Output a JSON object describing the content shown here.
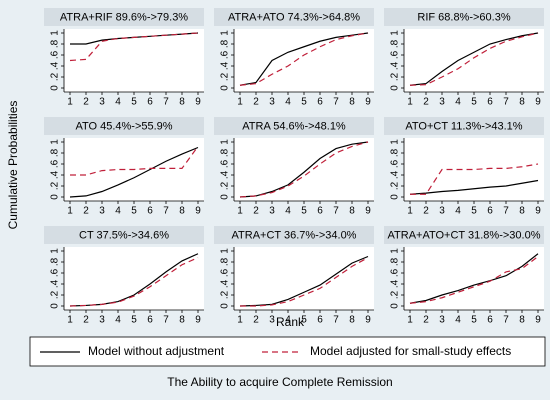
{
  "ylabel": "Cumulative Probabilities",
  "xlabel": "Rank",
  "caption": "The Ability to acquire Complete Remission",
  "chart_data": [
    {
      "type": "line",
      "title": "ATRA+RIF 89.6%->79.3%",
      "x": [
        1,
        2,
        3,
        4,
        5,
        6,
        7,
        8,
        9
      ],
      "xlim": [
        1,
        9
      ],
      "xticks": [
        1,
        2,
        3,
        4,
        5,
        6,
        7,
        8,
        9
      ],
      "ylim": [
        0,
        1
      ],
      "yticks": [
        0,
        {
          "value": 0.2,
          "label": ".2"
        },
        {
          "value": 0.4,
          "label": ".4"
        },
        {
          "value": 0.6,
          "label": ".6"
        },
        {
          "value": 0.8,
          "label": ".8"
        },
        1
      ],
      "series": [
        {
          "name": "Model without adjustment",
          "color": "#000000",
          "values": [
            0.8,
            0.8,
            0.87,
            0.9,
            0.92,
            0.94,
            0.96,
            0.98,
            1
          ]
        },
        {
          "name": "Model adjusted for small-study effects",
          "color": "#c0203a",
          "values": [
            0.5,
            0.52,
            0.85,
            0.9,
            0.92,
            0.94,
            0.96,
            0.98,
            1
          ]
        }
      ]
    },
    {
      "type": "line",
      "title": "ATRA+ATO 74.3%->64.8%",
      "x": [
        1,
        2,
        3,
        4,
        5,
        6,
        7,
        8,
        9
      ],
      "xlim": [
        1,
        9
      ],
      "xticks": [
        1,
        2,
        3,
        4,
        5,
        6,
        7,
        8,
        9
      ],
      "ylim": [
        0,
        1
      ],
      "yticks": [
        0,
        {
          "value": 0.2,
          "label": ".2"
        },
        {
          "value": 0.4,
          "label": ".4"
        },
        {
          "value": 0.6,
          "label": ".6"
        },
        {
          "value": 0.8,
          "label": ".8"
        },
        1
      ],
      "series": [
        {
          "name": "Model without adjustment",
          "color": "#000000",
          "values": [
            0.05,
            0.1,
            0.5,
            0.65,
            0.75,
            0.85,
            0.92,
            0.96,
            1
          ]
        },
        {
          "name": "Model adjusted for small-study effects",
          "color": "#c0203a",
          "values": [
            0.05,
            0.08,
            0.25,
            0.4,
            0.6,
            0.75,
            0.88,
            0.95,
            1
          ]
        }
      ]
    },
    {
      "type": "line",
      "title": "RIF 68.8%->60.3%",
      "x": [
        1,
        2,
        3,
        4,
        5,
        6,
        7,
        8,
        9
      ],
      "xlim": [
        1,
        9
      ],
      "xticks": [
        1,
        2,
        3,
        4,
        5,
        6,
        7,
        8,
        9
      ],
      "ylim": [
        0,
        1
      ],
      "yticks": [
        0,
        {
          "value": 0.2,
          "label": ".2"
        },
        {
          "value": 0.4,
          "label": ".4"
        },
        {
          "value": 0.6,
          "label": ".6"
        },
        {
          "value": 0.8,
          "label": ".8"
        },
        1
      ],
      "series": [
        {
          "name": "Model without adjustment",
          "color": "#000000",
          "values": [
            0.05,
            0.08,
            0.3,
            0.5,
            0.65,
            0.8,
            0.88,
            0.95,
            1
          ]
        },
        {
          "name": "Model adjusted for small-study effects",
          "color": "#c0203a",
          "values": [
            0.05,
            0.06,
            0.2,
            0.35,
            0.55,
            0.72,
            0.85,
            0.93,
            1
          ]
        }
      ]
    },
    {
      "type": "line",
      "title": "ATO 45.4%->55.9%",
      "x": [
        1,
        2,
        3,
        4,
        5,
        6,
        7,
        8,
        9
      ],
      "xlim": [
        1,
        9
      ],
      "xticks": [
        1,
        2,
        3,
        4,
        5,
        6,
        7,
        8,
        9
      ],
      "ylim": [
        0,
        1
      ],
      "yticks": [
        0,
        {
          "value": 0.2,
          "label": ".2"
        },
        {
          "value": 0.4,
          "label": ".4"
        },
        {
          "value": 0.6,
          "label": ".6"
        },
        {
          "value": 0.8,
          "label": ".8"
        },
        1
      ],
      "series": [
        {
          "name": "Model without adjustment",
          "color": "#000000",
          "values": [
            0,
            0.02,
            0.1,
            0.22,
            0.35,
            0.5,
            0.65,
            0.78,
            0.9
          ]
        },
        {
          "name": "Model adjusted for small-study effects",
          "color": "#c0203a",
          "values": [
            0.4,
            0.4,
            0.48,
            0.5,
            0.5,
            0.52,
            0.52,
            0.52,
            0.92
          ]
        }
      ]
    },
    {
      "type": "line",
      "title": "ATRA 54.6%->48.1%",
      "x": [
        1,
        2,
        3,
        4,
        5,
        6,
        7,
        8,
        9
      ],
      "xlim": [
        1,
        9
      ],
      "xticks": [
        1,
        2,
        3,
        4,
        5,
        6,
        7,
        8,
        9
      ],
      "ylim": [
        0,
        1
      ],
      "yticks": [
        0,
        {
          "value": 0.2,
          "label": ".2"
        },
        {
          "value": 0.4,
          "label": ".4"
        },
        {
          "value": 0.6,
          "label": ".6"
        },
        {
          "value": 0.8,
          "label": ".8"
        },
        1
      ],
      "series": [
        {
          "name": "Model without adjustment",
          "color": "#000000",
          "values": [
            0,
            0.02,
            0.1,
            0.22,
            0.45,
            0.7,
            0.88,
            0.96,
            1
          ]
        },
        {
          "name": "Model adjusted for small-study effects",
          "color": "#c0203a",
          "values": [
            0,
            0.02,
            0.08,
            0.2,
            0.38,
            0.6,
            0.8,
            0.92,
            1
          ]
        }
      ]
    },
    {
      "type": "line",
      "title": "ATO+CT 11.3%->43.1%",
      "x": [
        1,
        2,
        3,
        4,
        5,
        6,
        7,
        8,
        9
      ],
      "xlim": [
        1,
        9
      ],
      "xticks": [
        1,
        2,
        3,
        4,
        5,
        6,
        7,
        8,
        9
      ],
      "ylim": [
        0,
        1
      ],
      "yticks": [
        0,
        {
          "value": 0.2,
          "label": ".2"
        },
        {
          "value": 0.4,
          "label": ".4"
        },
        {
          "value": 0.6,
          "label": ".6"
        },
        {
          "value": 0.8,
          "label": ".8"
        },
        1
      ],
      "series": [
        {
          "name": "Model without adjustment",
          "color": "#000000",
          "values": [
            0.05,
            0.07,
            0.1,
            0.12,
            0.15,
            0.18,
            0.2,
            0.25,
            0.3
          ]
        },
        {
          "name": "Model adjusted for small-study effects",
          "color": "#c0203a",
          "values": [
            0.05,
            0.05,
            0.5,
            0.5,
            0.5,
            0.52,
            0.52,
            0.55,
            0.6
          ]
        }
      ]
    },
    {
      "type": "line",
      "title": "CT 37.5%->34.6%",
      "x": [
        1,
        2,
        3,
        4,
        5,
        6,
        7,
        8,
        9
      ],
      "xlim": [
        1,
        9
      ],
      "xticks": [
        1,
        2,
        3,
        4,
        5,
        6,
        7,
        8,
        9
      ],
      "ylim": [
        0,
        1
      ],
      "yticks": [
        0,
        {
          "value": 0.2,
          "label": ".2"
        },
        {
          "value": 0.4,
          "label": ".4"
        },
        {
          "value": 0.6,
          "label": ".6"
        },
        {
          "value": 0.8,
          "label": ".8"
        },
        1
      ],
      "series": [
        {
          "name": "Model without adjustment",
          "color": "#000000",
          "values": [
            0,
            0.01,
            0.03,
            0.08,
            0.2,
            0.4,
            0.62,
            0.82,
            0.95
          ]
        },
        {
          "name": "Model adjusted for small-study effects",
          "color": "#c0203a",
          "values": [
            0,
            0.01,
            0.03,
            0.07,
            0.18,
            0.35,
            0.55,
            0.75,
            0.88
          ]
        }
      ]
    },
    {
      "type": "line",
      "title": "ATRA+CT 36.7%->34.0%",
      "x": [
        1,
        2,
        3,
        4,
        5,
        6,
        7,
        8,
        9
      ],
      "xlim": [
        1,
        9
      ],
      "xticks": [
        1,
        2,
        3,
        4,
        5,
        6,
        7,
        8,
        9
      ],
      "ylim": [
        0,
        1
      ],
      "yticks": [
        0,
        {
          "value": 0.2,
          "label": ".2"
        },
        {
          "value": 0.4,
          "label": ".4"
        },
        {
          "value": 0.6,
          "label": ".6"
        },
        {
          "value": 0.8,
          "label": ".8"
        },
        1
      ],
      "series": [
        {
          "name": "Model without adjustment",
          "color": "#000000",
          "values": [
            0,
            0.01,
            0.03,
            0.12,
            0.25,
            0.38,
            0.58,
            0.78,
            0.9
          ]
        },
        {
          "name": "Model adjusted for small-study effects",
          "color": "#c0203a",
          "values": [
            0,
            0,
            0.02,
            0.08,
            0.2,
            0.32,
            0.52,
            0.72,
            0.88
          ]
        }
      ]
    },
    {
      "type": "line",
      "title": "ATRA+ATO+CT 31.8%->30.0%",
      "x": [
        1,
        2,
        3,
        4,
        5,
        6,
        7,
        8,
        9
      ],
      "xlim": [
        1,
        9
      ],
      "xticks": [
        1,
        2,
        3,
        4,
        5,
        6,
        7,
        8,
        9
      ],
      "ylim": [
        0,
        1
      ],
      "yticks": [
        0,
        {
          "value": 0.2,
          "label": ".2"
        },
        {
          "value": 0.4,
          "label": ".4"
        },
        {
          "value": 0.6,
          "label": ".6"
        },
        {
          "value": 0.8,
          "label": ".8"
        },
        1
      ],
      "series": [
        {
          "name": "Model without adjustment",
          "color": "#000000",
          "values": [
            0.05,
            0.1,
            0.2,
            0.28,
            0.38,
            0.46,
            0.55,
            0.72,
            0.95
          ]
        },
        {
          "name": "Model adjusted for small-study effects",
          "color": "#c0203a",
          "values": [
            0.05,
            0.08,
            0.15,
            0.25,
            0.35,
            0.45,
            0.62,
            0.68,
            0.9
          ]
        }
      ]
    }
  ]
}
